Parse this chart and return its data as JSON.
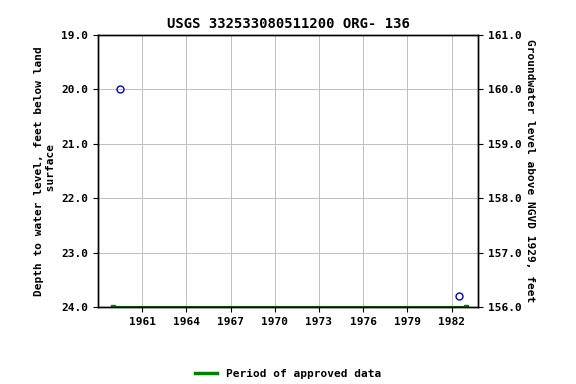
{
  "title": "USGS 332533080511200 ORG- 136",
  "points": [
    {
      "year": 1959.5,
      "depth": 20.0
    },
    {
      "year": 1982.5,
      "depth": 23.8
    }
  ],
  "green_bar_x_start": 1959.0,
  "green_bar_x_end": 1983.0,
  "green_bar_y": 24.0,
  "xlim": [
    1958.0,
    1983.8
  ],
  "ylim_left": [
    24.0,
    19.0
  ],
  "ylim_right": [
    156.0,
    161.0
  ],
  "xticks": [
    1961,
    1964,
    1967,
    1970,
    1973,
    1976,
    1979,
    1982
  ],
  "yticks_left": [
    19.0,
    20.0,
    21.0,
    22.0,
    23.0,
    24.0
  ],
  "yticks_right": [
    161.0,
    160.0,
    159.0,
    158.0,
    157.0,
    156.0
  ],
  "ylabel_left": "Depth to water level, feet below land\n surface",
  "ylabel_right": "Groundwater level above NGVD 1929, feet",
  "point_color": "#0000cc",
  "green_color": "#008000",
  "bg_color": "#ffffff",
  "grid_color": "#c0c0c0",
  "title_fontsize": 10,
  "axis_label_fontsize": 8,
  "tick_fontsize": 8,
  "legend_label": "Period of approved data"
}
